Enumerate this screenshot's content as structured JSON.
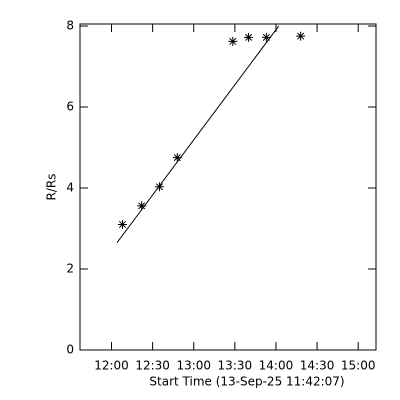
{
  "chart_data": {
    "type": "scatter",
    "xlabel": "Start Time (13-Sep-25 11:42:07)",
    "ylabel": "R/Rs",
    "x": [
      728,
      742,
      755,
      768,
      808.5,
      820,
      833,
      858
    ],
    "values": [
      3.1,
      3.56,
      4.03,
      4.75,
      7.62,
      7.72,
      7.72,
      7.75
    ],
    "fit": {
      "x": [
        724,
        842
      ],
      "y": [
        2.65,
        8.0
      ]
    },
    "color": "#000000",
    "xlim": [
      697,
      913
    ],
    "ylim": [
      0,
      8.05
    ],
    "xticks": [
      {
        "value": 720,
        "label": "12:00"
      },
      {
        "value": 750,
        "label": "12:30"
      },
      {
        "value": 780,
        "label": "13:00"
      },
      {
        "value": 810,
        "label": "13:30"
      },
      {
        "value": 840,
        "label": "14:00"
      },
      {
        "value": 870,
        "label": "14:30"
      },
      {
        "value": 900,
        "label": "15:00"
      }
    ],
    "yticks": [
      0,
      2,
      4,
      6,
      8
    ]
  }
}
